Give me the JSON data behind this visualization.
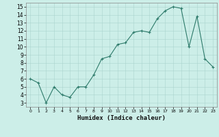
{
  "x": [
    0,
    1,
    2,
    3,
    4,
    5,
    6,
    7,
    8,
    9,
    10,
    11,
    12,
    13,
    14,
    15,
    16,
    17,
    18,
    19,
    20,
    21,
    22,
    23
  ],
  "y": [
    6.0,
    5.5,
    3.0,
    5.0,
    4.0,
    3.7,
    5.0,
    5.0,
    6.5,
    8.5,
    8.8,
    10.3,
    10.5,
    11.8,
    12.0,
    11.8,
    13.5,
    14.5,
    15.0,
    14.8,
    10.0,
    13.8,
    8.5,
    7.5
  ],
  "line_color": "#2d7a6a",
  "marker_color": "#2d7a6a",
  "bg_color": "#cceee8",
  "grid_color": "#aad4ce",
  "xlabel": "Humidex (Indice chaleur)",
  "ylim": [
    2.5,
    15.5
  ],
  "xlim": [
    -0.5,
    23.5
  ],
  "yticks": [
    3,
    4,
    5,
    6,
    7,
    8,
    9,
    10,
    11,
    12,
    13,
    14,
    15
  ],
  "xticks": [
    0,
    1,
    2,
    3,
    4,
    5,
    6,
    7,
    8,
    9,
    10,
    11,
    12,
    13,
    14,
    15,
    16,
    17,
    18,
    19,
    20,
    21,
    22,
    23
  ]
}
